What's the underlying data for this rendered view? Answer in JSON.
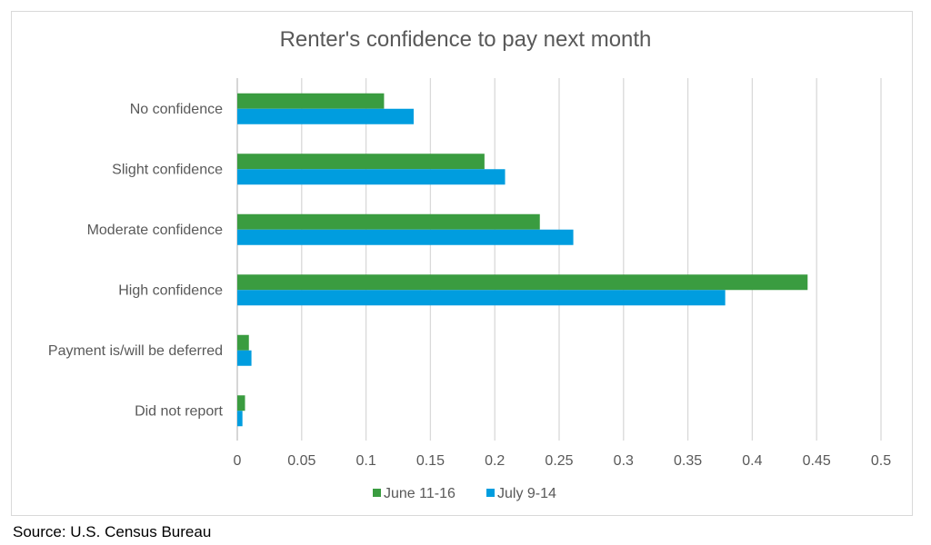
{
  "chart_data": {
    "type": "bar",
    "orientation": "horizontal",
    "title": "Renter's confidence to pay next month",
    "categories": [
      "No confidence",
      "Slight confidence",
      "Moderate confidence",
      "High confidence",
      "Payment is/will be deferred",
      "Did not report"
    ],
    "series": [
      {
        "name": "June 11-16",
        "color": "#3a9c40",
        "values": [
          0.114,
          0.192,
          0.235,
          0.443,
          0.009,
          0.006
        ]
      },
      {
        "name": "July 9-14",
        "color": "#009ddf",
        "values": [
          0.137,
          0.208,
          0.261,
          0.379,
          0.011,
          0.004
        ]
      }
    ],
    "xlim": [
      0,
      0.5
    ],
    "xticks": [
      "0",
      "0.05",
      "0.1",
      "0.15",
      "0.2",
      "0.25",
      "0.3",
      "0.35",
      "0.4",
      "0.45",
      "0.5"
    ],
    "grid": true,
    "legend": "bottom"
  },
  "source": "Source: U.S. Census Bureau"
}
